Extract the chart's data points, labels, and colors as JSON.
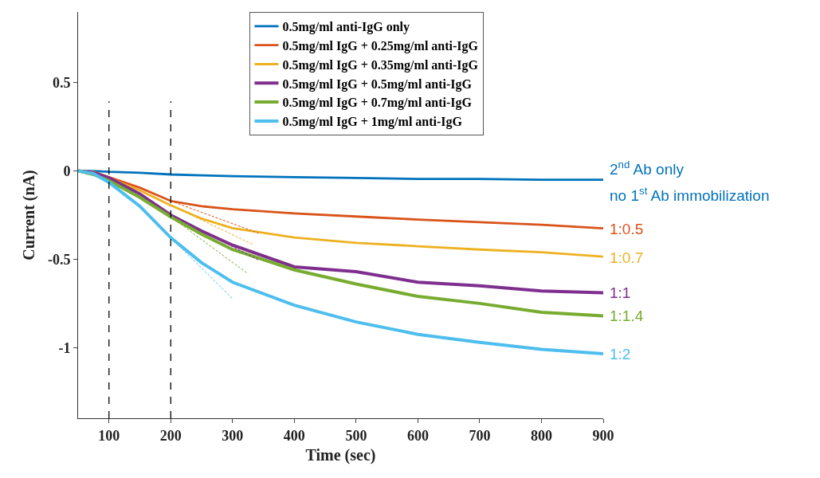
{
  "chart_data": {
    "type": "line",
    "xlabel": "Time (sec)",
    "ylabel": "Current (nA)",
    "xlim": [
      50,
      900
    ],
    "xticks": [
      100,
      200,
      300,
      400,
      500,
      600,
      700,
      800,
      900
    ],
    "ylim": [
      -1.4,
      0.9
    ],
    "yticks": [
      -1,
      -0.5,
      0,
      0.5
    ],
    "grid": false,
    "legend": "top",
    "marker": "none",
    "line_style": "solid",
    "x": [
      50,
      75,
      100,
      150,
      200,
      250,
      300,
      400,
      500,
      600,
      700,
      800,
      900
    ],
    "series": [
      {
        "name": "0.5mg/ml anti-IgG only",
        "color": "#0072bd",
        "values": [
          0,
          0,
          -0.005,
          -0.01,
          -0.02,
          -0.025,
          -0.03,
          -0.035,
          -0.04,
          -0.045,
          -0.045,
          -0.05,
          -0.05
        ]
      },
      {
        "name": "0.5mg/ml IgG + 0.25mg/ml anti-IgG",
        "color": "#d95319",
        "values": [
          0,
          -0.005,
          -0.035,
          -0.095,
          -0.17,
          -0.2,
          -0.217,
          -0.24,
          -0.258,
          -0.275,
          -0.29,
          -0.305,
          -0.325
        ]
      },
      {
        "name": "0.5mg/ml IgG + 0.35mg/ml anti-IgG",
        "color": "#edb120",
        "values": [
          0,
          -0.005,
          -0.04,
          -0.11,
          -0.195,
          -0.27,
          -0.324,
          -0.377,
          -0.407,
          -0.426,
          -0.445,
          -0.46,
          -0.485
        ]
      },
      {
        "name": "0.5mg/ml IgG + 0.5mg/ml anti-IgG",
        "color": "#7e2f8e",
        "values": [
          0,
          -0.01,
          -0.04,
          -0.13,
          -0.25,
          -0.34,
          -0.42,
          -0.543,
          -0.57,
          -0.63,
          -0.65,
          -0.68,
          -0.69
        ]
      },
      {
        "name": "0.5mg/ml IgG + 0.7mg/ml anti-IgG",
        "color": "#77ac30",
        "values": [
          0,
          -0.02,
          -0.055,
          -0.15,
          -0.26,
          -0.358,
          -0.445,
          -0.56,
          -0.64,
          -0.71,
          -0.75,
          -0.8,
          -0.82
        ]
      },
      {
        "name": "0.5mg/ml IgG + 1mg/ml anti-IgG",
        "color": "#4dbeee",
        "values": [
          0,
          -0.015,
          -0.065,
          -0.2,
          -0.378,
          -0.52,
          -0.63,
          -0.76,
          -0.855,
          -0.925,
          -0.97,
          -1.01,
          -1.035
        ]
      },
      {
        "type": "line",
        "line_style": "dashed",
        "color": "#d95319",
        "x": [
          200,
          342
        ],
        "values": [
          -0.17,
          -0.352
        ]
      },
      {
        "type": "line",
        "line_style": "dashed",
        "color": "#edb120",
        "x": [
          200,
          333
        ],
        "values": [
          -0.195,
          -0.416
        ]
      },
      {
        "type": "line",
        "line_style": "dashed",
        "color": "#7e2f8e",
        "x": [
          200,
          342
        ],
        "values": [
          -0.25,
          -0.504
        ]
      },
      {
        "type": "line",
        "line_style": "dashed",
        "color": "#77ac30",
        "x": [
          200,
          325
        ],
        "values": [
          -0.26,
          -0.582
        ]
      },
      {
        "type": "line",
        "line_style": "dashed",
        "color": "#4dbeee",
        "x": [
          200,
          300
        ],
        "values": [
          -0.378,
          -0.723
        ]
      }
    ],
    "ref_lines": [
      {
        "axis": "x",
        "value": 100,
        "color": "#000000",
        "line_style": "dashed"
      },
      {
        "axis": "x",
        "value": 200,
        "color": "#000000",
        "line_style": "dashed"
      }
    ],
    "annotations": [
      "2$^{nd}$ Ab only",
      "no 1$^{st}$ Ab immobilization",
      "1:0.5",
      "1:0.7",
      "1:1",
      "1:1.4",
      "1:2"
    ]
  }
}
